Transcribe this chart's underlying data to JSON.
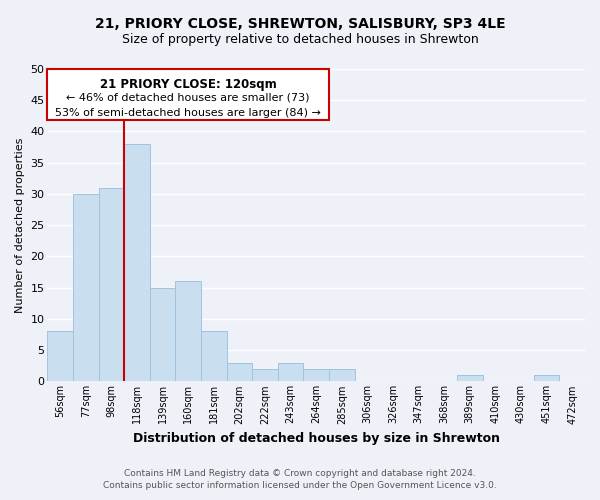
{
  "title": "21, PRIORY CLOSE, SHREWTON, SALISBURY, SP3 4LE",
  "subtitle": "Size of property relative to detached houses in Shrewton",
  "xlabel": "Distribution of detached houses by size in Shrewton",
  "ylabel": "Number of detached properties",
  "bin_labels": [
    "56sqm",
    "77sqm",
    "98sqm",
    "118sqm",
    "139sqm",
    "160sqm",
    "181sqm",
    "202sqm",
    "222sqm",
    "243sqm",
    "264sqm",
    "285sqm",
    "306sqm",
    "326sqm",
    "347sqm",
    "368sqm",
    "389sqm",
    "410sqm",
    "430sqm",
    "451sqm",
    "472sqm"
  ],
  "bar_values": [
    8,
    30,
    31,
    38,
    15,
    16,
    8,
    3,
    2,
    3,
    2,
    2,
    0,
    0,
    0,
    0,
    1,
    0,
    0,
    1,
    0
  ],
  "bar_color": "#c9dff0",
  "bar_edge_color": "#a0c4e0",
  "vline_index": 3,
  "vline_color": "#cc0000",
  "ylim": [
    0,
    50
  ],
  "yticks": [
    0,
    5,
    10,
    15,
    20,
    25,
    30,
    35,
    40,
    45,
    50
  ],
  "annotation_title": "21 PRIORY CLOSE: 120sqm",
  "annotation_line1": "← 46% of detached houses are smaller (73)",
  "annotation_line2": "53% of semi-detached houses are larger (84) →",
  "annotation_box_color": "#ffffff",
  "annotation_box_edge": "#cc0000",
  "footer_line1": "Contains HM Land Registry data © Crown copyright and database right 2024.",
  "footer_line2": "Contains public sector information licensed under the Open Government Licence v3.0.",
  "bg_color": "#eef2f8",
  "grid_color": "#ffffff"
}
